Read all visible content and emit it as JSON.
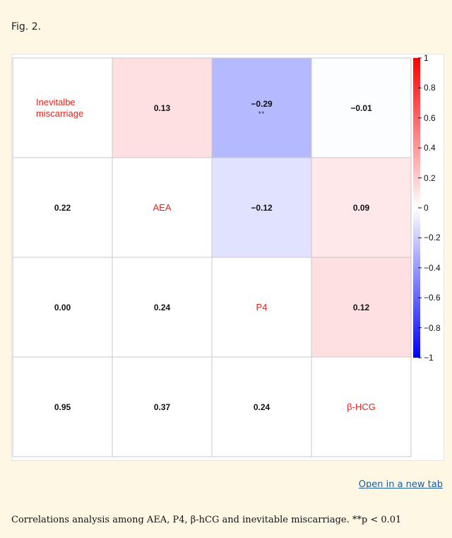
{
  "figure": {
    "label": "Fig. 2.",
    "open_link": "Open in a new tab",
    "caption": "Correlations analysis among AEA, P4, β-hCG and inevitable miscarriage. **p < 0.01"
  },
  "chart_data": {
    "type": "heatmap",
    "variables": [
      "Inevitalbe miscarriage",
      "AEA",
      "P4",
      "β-HCG"
    ],
    "diagonal_labels": [
      [
        "Inevitalbe",
        "miscarriage"
      ],
      [
        "AEA"
      ],
      [
        "P4"
      ],
      [
        "β-HCG"
      ]
    ],
    "upper_correlations": [
      {
        "row": 0,
        "col": 1,
        "label": "0.13",
        "value": 0.13,
        "stars": ""
      },
      {
        "row": 0,
        "col": 2,
        "label": "−0.29",
        "value": -0.29,
        "stars": "**"
      },
      {
        "row": 0,
        "col": 3,
        "label": "−0.01",
        "value": -0.01,
        "stars": ""
      },
      {
        "row": 1,
        "col": 2,
        "label": "−0.12",
        "value": -0.12,
        "stars": ""
      },
      {
        "row": 1,
        "col": 3,
        "label": "0.09",
        "value": 0.09,
        "stars": ""
      },
      {
        "row": 2,
        "col": 3,
        "label": "0.12",
        "value": 0.12,
        "stars": ""
      }
    ],
    "lower_values": [
      {
        "row": 1,
        "col": 0,
        "label": "0.22"
      },
      {
        "row": 2,
        "col": 0,
        "label": "0.00"
      },
      {
        "row": 2,
        "col": 1,
        "label": "0.24"
      },
      {
        "row": 3,
        "col": 0,
        "label": "0.95"
      },
      {
        "row": 3,
        "col": 1,
        "label": "0.37"
      },
      {
        "row": 3,
        "col": 2,
        "label": "0.24"
      }
    ],
    "colorbar": {
      "range": [
        -1,
        1
      ],
      "ticks": [
        "1",
        "0.8",
        "0.6",
        "0.4",
        "0.2",
        "0",
        "−0.2",
        "−0.4",
        "−0.6",
        "−0.8",
        "−1"
      ],
      "tick_values": [
        1,
        0.8,
        0.6,
        0.4,
        0.2,
        0,
        -0.2,
        -0.4,
        -0.6,
        -0.8,
        -1
      ]
    },
    "colors": {
      "positive": "#ff0000",
      "negative": "#0000ff",
      "neutral": "#ffffff",
      "diag_text": "#e2231a"
    }
  }
}
